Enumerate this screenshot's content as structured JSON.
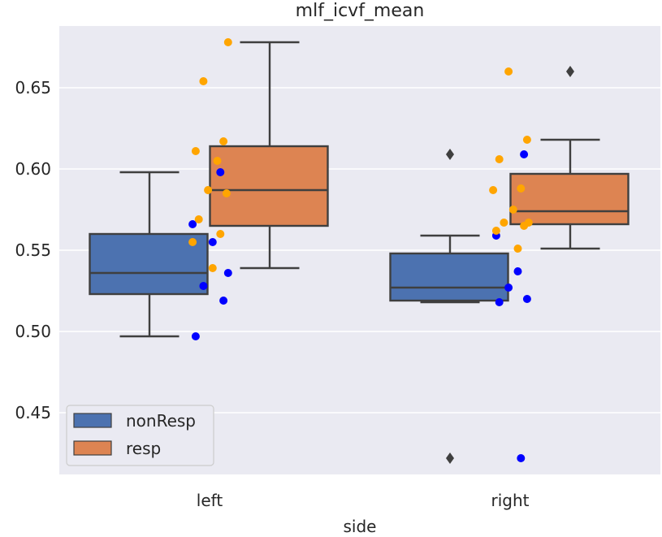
{
  "chart_data": {
    "type": "box",
    "title": "mlf_icvf_mean",
    "xlabel": "side",
    "ylabel": "",
    "categories": [
      "left",
      "right"
    ],
    "ylim": [
      0.412,
      0.688
    ],
    "yticks": [
      0.45,
      0.5,
      0.55,
      0.6,
      0.65
    ],
    "ytick_labels": [
      "0.45",
      "0.50",
      "0.55",
      "0.60",
      "0.65"
    ],
    "grid": true,
    "legend_position": "lower-left",
    "series": [
      {
        "name": "nonResp",
        "box_color": "#4c72b0",
        "point_color": "#0000ff",
        "boxes": [
          {
            "category": "left",
            "whisker_low": 0.497,
            "q1": 0.523,
            "median": 0.536,
            "q3": 0.56,
            "whisker_high": 0.598,
            "outliers": []
          },
          {
            "category": "right",
            "whisker_low": 0.518,
            "q1": 0.519,
            "median": 0.527,
            "q3": 0.548,
            "whisker_high": 0.559,
            "outliers": [
              0.422,
              0.609
            ]
          }
        ],
        "points": [
          {
            "category": "left",
            "values": [
              0.598,
              0.566,
              0.555,
              0.536,
              0.528,
              0.519,
              0.497
            ]
          },
          {
            "category": "right",
            "values": [
              0.609,
              0.559,
              0.537,
              0.527,
              0.52,
              0.518,
              0.422
            ]
          }
        ]
      },
      {
        "name": "resp",
        "box_color": "#dd8452",
        "point_color": "#ffa500",
        "boxes": [
          {
            "category": "left",
            "whisker_low": 0.539,
            "q1": 0.565,
            "median": 0.587,
            "q3": 0.614,
            "whisker_high": 0.678,
            "outliers": []
          },
          {
            "category": "right",
            "whisker_low": 0.551,
            "q1": 0.566,
            "median": 0.574,
            "q3": 0.597,
            "whisker_high": 0.618,
            "outliers": [
              0.66
            ]
          }
        ],
        "points": [
          {
            "category": "left",
            "values": [
              0.678,
              0.654,
              0.617,
              0.611,
              0.605,
              0.587,
              0.585,
              0.569,
              0.56,
              0.555,
              0.539
            ]
          },
          {
            "category": "right",
            "values": [
              0.66,
              0.618,
              0.606,
              0.588,
              0.587,
              0.575,
              0.567,
              0.567,
              0.565,
              0.562,
              0.551
            ]
          }
        ]
      }
    ]
  }
}
